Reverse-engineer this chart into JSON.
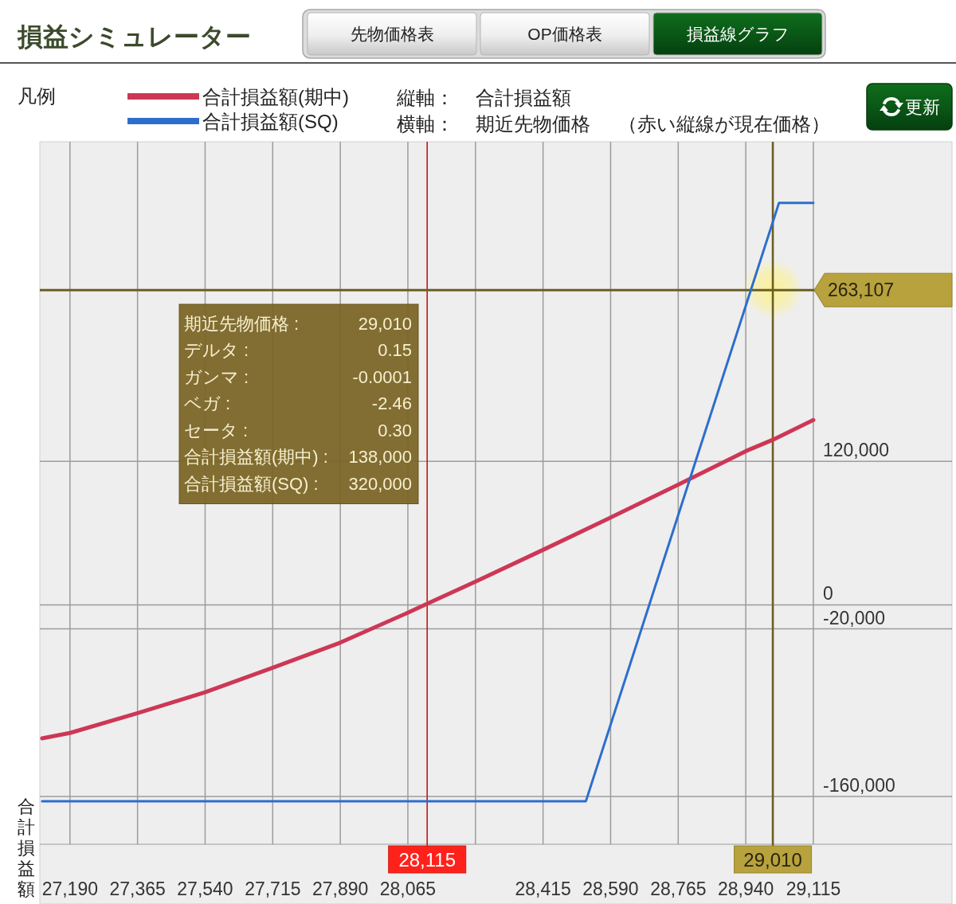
{
  "chart_data": {
    "type": "line",
    "title": "損益シミュレーター",
    "ylabel": "合計損益額",
    "legend_title": "凡例",
    "legend": "top left",
    "grid": true,
    "xlim": [
      27112,
      29474
    ],
    "ylim": [
      -200000,
      387000
    ],
    "xticks": [
      {
        "value": 27190,
        "label": "27,190"
      },
      {
        "value": 27365,
        "label": "27,365"
      },
      {
        "value": 27540,
        "label": "27,540"
      },
      {
        "value": 27715,
        "label": "27,715"
      },
      {
        "value": 27890,
        "label": "27,890"
      },
      {
        "value": 28065,
        "label": "28,065"
      },
      {
        "value": 28240,
        "label": null
      },
      {
        "value": 28415,
        "label": "28,415"
      },
      {
        "value": 28590,
        "label": "28,590"
      },
      {
        "value": 28765,
        "label": "28,765"
      },
      {
        "value": 28940,
        "label": "28,940"
      },
      {
        "value": 29115,
        "label": "29,115"
      }
    ],
    "yticks": [
      {
        "value": -160000,
        "label": "-160,000"
      },
      {
        "value": -20000,
        "label": "-20,000"
      },
      0,
      {
        "value": 120000,
        "label": "120,000"
      }
    ],
    "series": [
      {
        "name": "合計損益額(期中)",
        "color": "#cd3755",
        "x": [
          27118,
          27190,
          27365,
          27540,
          27715,
          27890,
          28065,
          28115,
          28240,
          28415,
          28590,
          28765,
          28940,
          29010,
          29115
        ],
        "values": [
          -111500,
          -107000,
          -90500,
          -73000,
          -52500,
          -31500,
          -6500,
          1000,
          19500,
          46000,
          73000,
          100500,
          128500,
          138000,
          154500
        ]
      },
      {
        "name": "合計損益額(SQ)",
        "color": "#2d6ecd",
        "x": [
          27118,
          28526,
          29026,
          29115
        ],
        "values": [
          -164000,
          -164000,
          336000,
          336000
        ]
      }
    ],
    "ref_lines": [
      {
        "axis": "x",
        "value": 28115,
        "label": "28,115",
        "color": "#c81410"
      },
      {
        "axis": "x",
        "value": 29010,
        "label": "29,010",
        "color": "#6b5f24"
      },
      {
        "axis": "y",
        "value": 263107,
        "label": "263,107",
        "color": "#6b5f24"
      }
    ],
    "annotations": [
      "先物価格表",
      "OP価格表",
      "損益線グラフ",
      "更新",
      "縦軸：",
      "合計損益額",
      "横軸：",
      "期近先物価格",
      "（赤い縦線が現在価格）",
      "期近先物価格 :",
      "29,010",
      "デルタ :",
      "0.15",
      "ガンマ :",
      "-0.0001",
      "ベガ :",
      "-2.46",
      "セータ :",
      "0.30",
      "合計損益額(期中) :",
      "138,000",
      "合計損益額(SQ) :",
      "320,000"
    ]
  }
}
